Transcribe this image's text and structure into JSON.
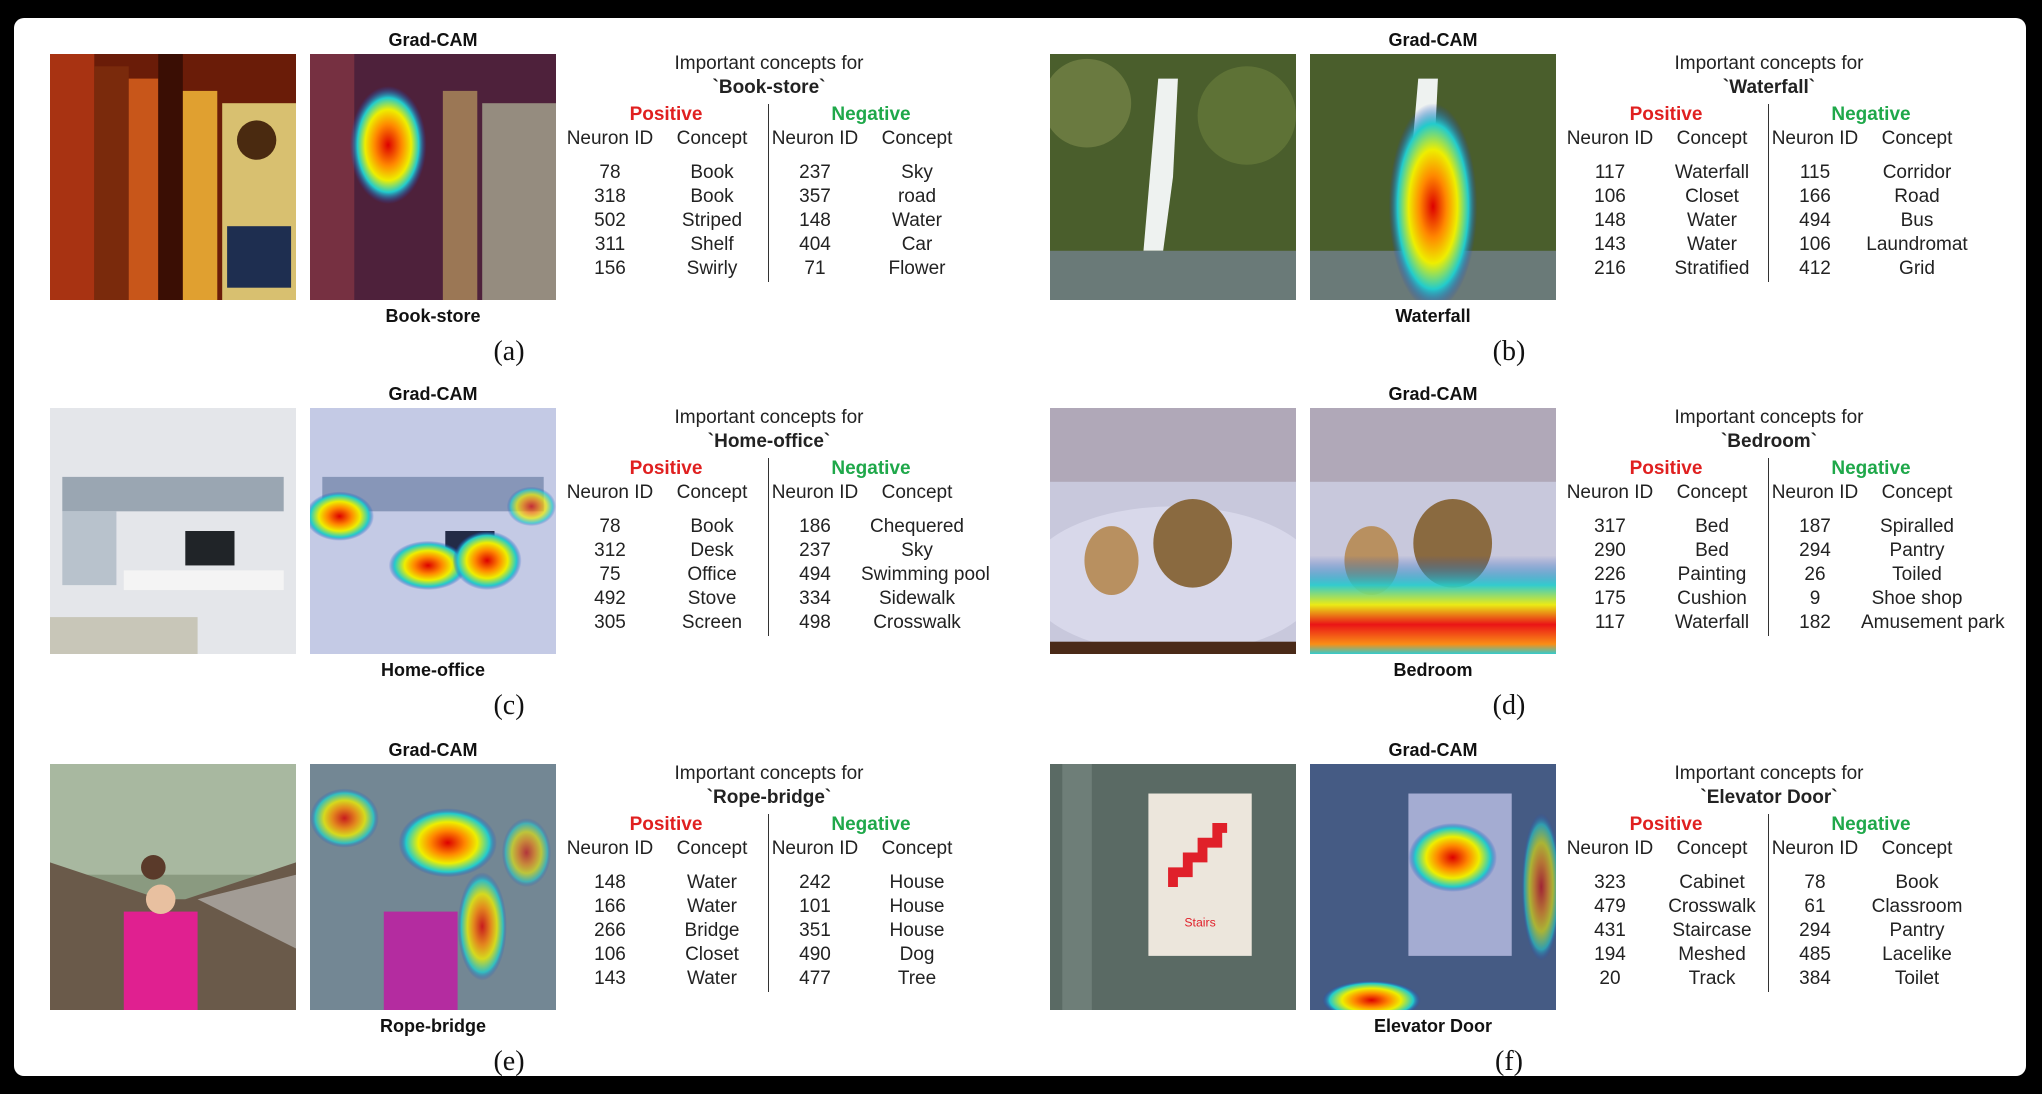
{
  "gradcam_title": "Grad-CAM",
  "important_title": "Important concepts for",
  "positive_title": "Positive",
  "negative_title": "Negative",
  "neuron_header": "Neuron ID",
  "concept_header": "Concept",
  "colors": {
    "positive": "#e02020",
    "negative": "#1fa84a"
  },
  "panels": [
    {
      "label": "(a)",
      "class_name": "Book-store",
      "class_quoted": "`Book-store`",
      "positive": [
        [
          "78",
          "Book"
        ],
        [
          "318",
          "Book"
        ],
        [
          "502",
          "Striped"
        ],
        [
          "311",
          "Shelf"
        ],
        [
          "156",
          "Swirly"
        ]
      ],
      "negative": [
        [
          "237",
          "Sky"
        ],
        [
          "357",
          "road"
        ],
        [
          "148",
          "Water"
        ],
        [
          "404",
          "Car"
        ],
        [
          "71",
          "Flower"
        ]
      ]
    },
    {
      "label": "(b)",
      "class_name": "Waterfall",
      "class_quoted": "`Waterfall`",
      "positive": [
        [
          "117",
          "Waterfall"
        ],
        [
          "106",
          "Closet"
        ],
        [
          "148",
          "Water"
        ],
        [
          "143",
          "Water"
        ],
        [
          "216",
          "Stratified"
        ]
      ],
      "negative": [
        [
          "115",
          "Corridor"
        ],
        [
          "166",
          "Road"
        ],
        [
          "494",
          "Bus"
        ],
        [
          "106",
          "Laundromat"
        ],
        [
          "412",
          "Grid"
        ]
      ]
    },
    {
      "label": "(c)",
      "class_name": "Home-office",
      "class_quoted": "`Home-office`",
      "positive": [
        [
          "78",
          "Book"
        ],
        [
          "312",
          "Desk"
        ],
        [
          "75",
          "Office"
        ],
        [
          "492",
          "Stove"
        ],
        [
          "305",
          "Screen"
        ]
      ],
      "negative": [
        [
          "186",
          "Chequered"
        ],
        [
          "237",
          "Sky"
        ],
        [
          "494",
          "Swimming pool"
        ],
        [
          "334",
          "Sidewalk"
        ],
        [
          "498",
          "Crosswalk"
        ]
      ]
    },
    {
      "label": "(d)",
      "class_name": "Bedroom",
      "class_quoted": "`Bedroom`",
      "positive": [
        [
          "317",
          "Bed"
        ],
        [
          "290",
          "Bed"
        ],
        [
          "226",
          "Painting"
        ],
        [
          "175",
          "Cushion"
        ],
        [
          "117",
          "Waterfall"
        ]
      ],
      "negative": [
        [
          "187",
          "Spiralled"
        ],
        [
          "294",
          "Pantry"
        ],
        [
          "26",
          "Toiled"
        ],
        [
          "9",
          "Shoe shop"
        ],
        [
          "182",
          "Amusement park"
        ]
      ]
    },
    {
      "label": "(e)",
      "class_name": "Rope-bridge",
      "class_quoted": "`Rope-bridge`",
      "positive": [
        [
          "148",
          "Water"
        ],
        [
          "166",
          "Water"
        ],
        [
          "266",
          "Bridge"
        ],
        [
          "106",
          "Closet"
        ],
        [
          "143",
          "Water"
        ]
      ],
      "negative": [
        [
          "242",
          "House"
        ],
        [
          "101",
          "House"
        ],
        [
          "351",
          "House"
        ],
        [
          "490",
          "Dog"
        ],
        [
          "477",
          "Tree"
        ]
      ]
    },
    {
      "label": "(f)",
      "class_name": "Elevator Door",
      "class_quoted": "`Elevator Door`",
      "stairs_sign": "Stairs",
      "positive": [
        [
          "323",
          "Cabinet"
        ],
        [
          "479",
          "Crosswalk"
        ],
        [
          "431",
          "Staircase"
        ],
        [
          "194",
          "Meshed"
        ],
        [
          "20",
          "Track"
        ]
      ],
      "negative": [
        [
          "78",
          "Book"
        ],
        [
          "61",
          "Classroom"
        ],
        [
          "294",
          "Pantry"
        ],
        [
          "485",
          "Lacelike"
        ],
        [
          "384",
          "Toilet"
        ]
      ]
    }
  ]
}
